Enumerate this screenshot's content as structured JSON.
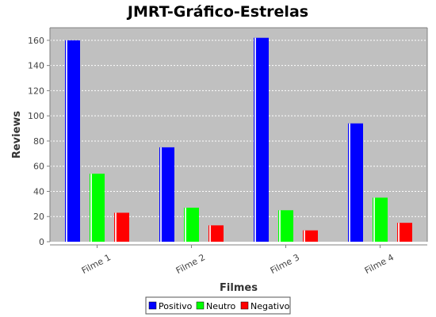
{
  "chart_data": {
    "type": "bar",
    "title": "JMRT-Gráfico-Estrelas",
    "xlabel": "Filmes",
    "ylabel": "Reviews",
    "categories": [
      "Filme 1",
      "Filme 2",
      "Filme 3",
      "Filme 4"
    ],
    "series": [
      {
        "name": "Positivo",
        "color": "#0000ff",
        "values": [
          160,
          75,
          162,
          94
        ]
      },
      {
        "name": "Neutro",
        "color": "#00ff00",
        "values": [
          54,
          27,
          25,
          35
        ]
      },
      {
        "name": "Negativo",
        "color": "#ff0000",
        "values": [
          23,
          13,
          9,
          15
        ]
      }
    ],
    "ylim": [
      0,
      170
    ],
    "yticks": [
      0,
      20,
      40,
      60,
      80,
      100,
      120,
      140,
      160
    ],
    "grid": true,
    "legend_position": "bottom",
    "plot_background": "#c0c0c0"
  }
}
